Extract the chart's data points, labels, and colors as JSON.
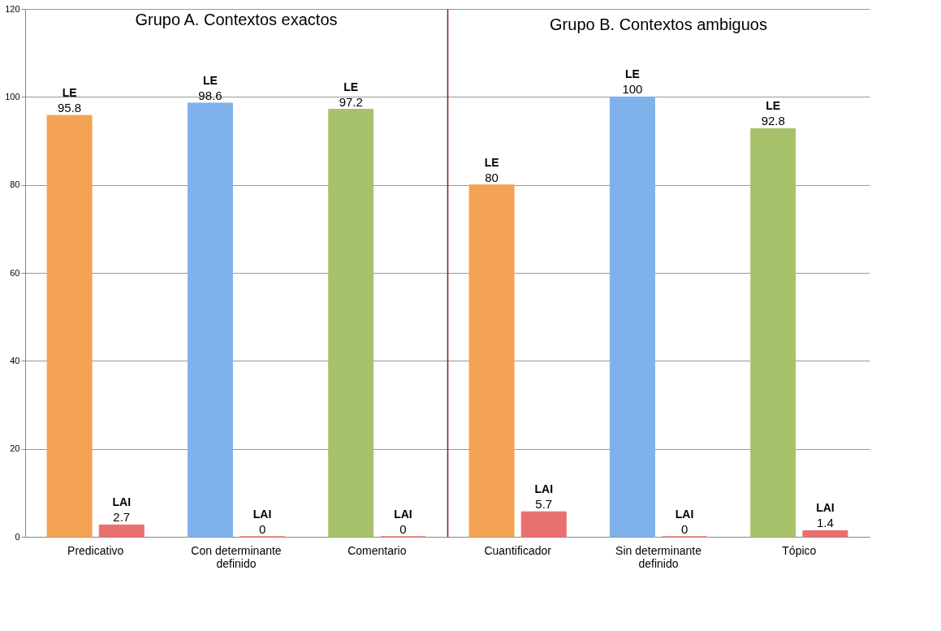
{
  "chart_data": [
    {
      "type": "bar",
      "title": "Grupo A. Contextos exactos",
      "categories": [
        "Predicativo",
        "Con determinante definido",
        "Comentario"
      ],
      "series": [
        {
          "name": "LE",
          "colors": [
            "#f4a354",
            "#7fb2ea",
            "#a8c26b"
          ],
          "values": [
            95.8,
            98.6,
            97.2
          ]
        },
        {
          "name": "LAI",
          "color": "#e8706e",
          "values": [
            2.7,
            0,
            0
          ]
        }
      ],
      "ylim": [
        0,
        120
      ],
      "yticks": [
        0,
        20,
        40,
        60,
        80,
        100,
        120
      ],
      "grid": "y",
      "data_labels": true,
      "legend": false
    },
    {
      "type": "bar",
      "title": "Grupo B. Contextos ambiguos",
      "categories": [
        "Cuantificador",
        "Sin determinante definido",
        "Tópico"
      ],
      "series": [
        {
          "name": "LE",
          "colors": [
            "#f4a354",
            "#7fb2ea",
            "#a8c26b"
          ],
          "values": [
            80,
            100,
            92.8
          ]
        },
        {
          "name": "LAI",
          "color": "#e8706e",
          "values": [
            5.7,
            0,
            1.4
          ]
        }
      ],
      "ylim": [
        0,
        120
      ],
      "yticks": [
        0,
        20,
        40,
        60,
        80,
        100,
        120
      ],
      "grid": "y",
      "data_labels": true,
      "legend": false,
      "tick_labels": "x"
    }
  ]
}
